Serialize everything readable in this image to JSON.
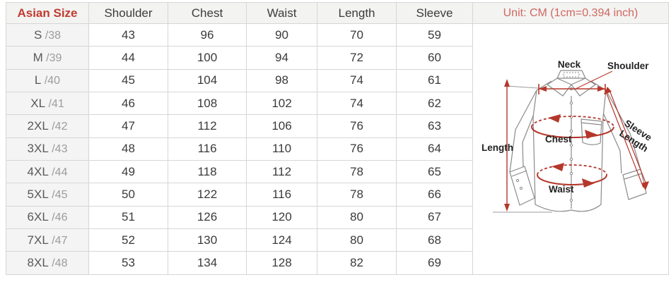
{
  "unit_note": "Unit: CM (1cm=0.394 inch)",
  "table": {
    "columns": [
      "Asian Size",
      "Shoulder",
      "Chest",
      "Waist",
      "Length",
      "Sleeve"
    ],
    "rows": [
      {
        "size": "S",
        "tag": "/38",
        "shoulder": "43",
        "chest": "96",
        "waist": "90",
        "length": "70",
        "sleeve": "59"
      },
      {
        "size": "M",
        "tag": "/39",
        "shoulder": "44",
        "chest": "100",
        "waist": "94",
        "length": "72",
        "sleeve": "60"
      },
      {
        "size": "L",
        "tag": "/40",
        "shoulder": "45",
        "chest": "104",
        "waist": "98",
        "length": "74",
        "sleeve": "61"
      },
      {
        "size": "XL",
        "tag": "/41",
        "shoulder": "46",
        "chest": "108",
        "waist": "102",
        "length": "74",
        "sleeve": "62"
      },
      {
        "size": "2XL",
        "tag": "/42",
        "shoulder": "47",
        "chest": "112",
        "waist": "106",
        "length": "76",
        "sleeve": "63"
      },
      {
        "size": "3XL",
        "tag": "/43",
        "shoulder": "48",
        "chest": "116",
        "waist": "110",
        "length": "76",
        "sleeve": "64"
      },
      {
        "size": "4XL",
        "tag": "/44",
        "shoulder": "49",
        "chest": "118",
        "waist": "112",
        "length": "78",
        "sleeve": "65"
      },
      {
        "size": "5XL",
        "tag": "/45",
        "shoulder": "50",
        "chest": "122",
        "waist": "116",
        "length": "78",
        "sleeve": "66"
      },
      {
        "size": "6XL",
        "tag": "/46",
        "shoulder": "51",
        "chest": "126",
        "waist": "120",
        "length": "80",
        "sleeve": "67"
      },
      {
        "size": "7XL",
        "tag": "/47",
        "shoulder": "52",
        "chest": "130",
        "waist": "124",
        "length": "80",
        "sleeve": "68"
      },
      {
        "size": "8XL",
        "tag": "/48",
        "shoulder": "53",
        "chest": "134",
        "waist": "128",
        "length": "82",
        "sleeve": "69"
      }
    ]
  },
  "diagram": {
    "labels": {
      "neck": "Neck",
      "shoulder": "Shoulder",
      "sleeve_line1": "Sleeve",
      "sleeve_line2": "Length",
      "length": "Length",
      "chest": "Chest",
      "waist": "Waist"
    }
  },
  "colors": {
    "header_accent": "#c23a2f",
    "unit_accent": "#d0685f",
    "annotation_red": "#b5372b",
    "shirt_outline": "#8a8a8a",
    "border": "#d6d6d6",
    "shaded_cell": "#f4f4f4"
  }
}
